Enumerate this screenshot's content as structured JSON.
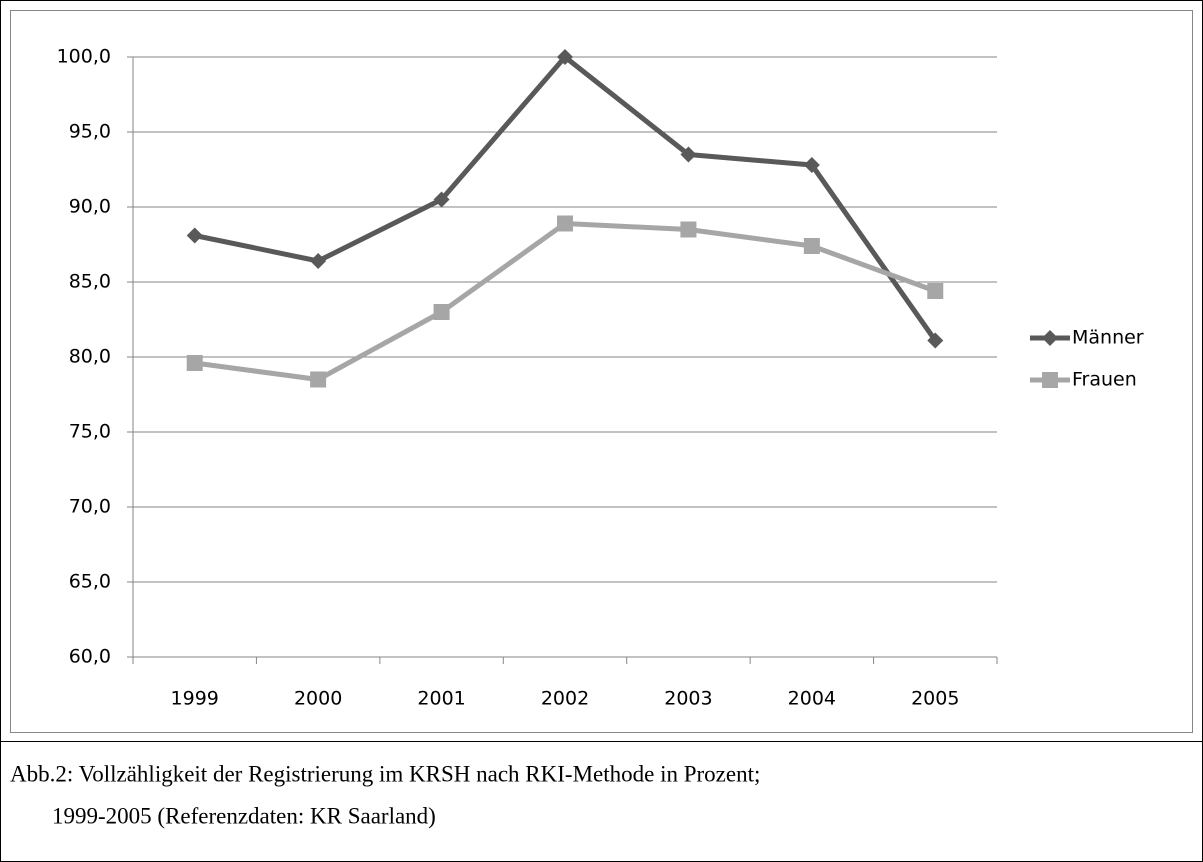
{
  "chart_data": {
    "type": "line",
    "categories": [
      "1999",
      "2000",
      "2001",
      "2002",
      "2003",
      "2004",
      "2005"
    ],
    "series": [
      {
        "name": "Männer",
        "color": "#595959",
        "marker": "diamond",
        "values": [
          88.1,
          86.4,
          90.5,
          100.0,
          93.5,
          92.8,
          81.1
        ]
      },
      {
        "name": "Frauen",
        "color": "#a6a6a6",
        "marker": "square",
        "values": [
          79.6,
          78.5,
          83.0,
          88.9,
          88.5,
          87.4,
          84.4
        ]
      }
    ],
    "ylim": [
      60,
      100
    ],
    "yticks": [
      {
        "value": 60,
        "label": "60,0"
      },
      {
        "value": 65,
        "label": "65,0"
      },
      {
        "value": 70,
        "label": "70,0"
      },
      {
        "value": 75,
        "label": "75,0"
      },
      {
        "value": 80,
        "label": "80,0"
      },
      {
        "value": 85,
        "label": "85,0"
      },
      {
        "value": 90,
        "label": "90,0"
      },
      {
        "value": 95,
        "label": "95,0"
      },
      {
        "value": 100,
        "label": "100,0"
      }
    ],
    "grid": true,
    "legend": "right"
  },
  "caption": [
    "Abb.2: Vollzähligkeit der Registrierung im KRSH nach RKI-Methode in Prozent;",
    "1999-2005 (Referenzdaten: KR Saarland)"
  ]
}
